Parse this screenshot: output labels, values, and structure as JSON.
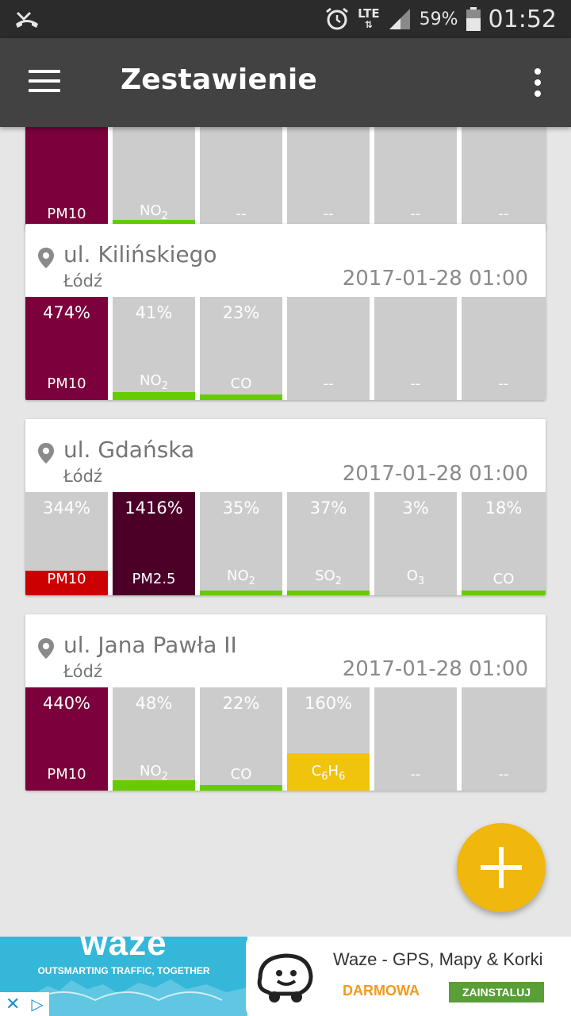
{
  "status_bar": {
    "network": "LTE",
    "battery": "59%",
    "time": "01:52",
    "icons": [
      "missed-call-icon",
      "alarm-icon",
      "signal-icon",
      "battery-icon"
    ]
  },
  "toolbar": {
    "title": "Zestawienie",
    "menu_icon": "hamburger-menu-icon",
    "overflow_icon": "more-vertical-icon"
  },
  "colors": {
    "primary_bar": "#424242",
    "purple": "#7b003b",
    "dark_purple": "#4d0027",
    "red": "#cc0000",
    "green": "#66cc00",
    "yellow": "#f0c40c",
    "tile_bg": "#cccccc",
    "fab": "#f0b70c"
  },
  "stations": [
    {
      "partial": true,
      "tiles": [
        {
          "pct": "",
          "label": "PM10",
          "sub": "",
          "color": "#7b003b",
          "fill": 1.0
        },
        {
          "pct": "",
          "label": "NO",
          "sub": "2",
          "color": "#66cc00",
          "fill": 0.1
        },
        {
          "pct": "",
          "label": "--",
          "sub": "",
          "color": "",
          "fill": 0
        },
        {
          "pct": "",
          "label": "--",
          "sub": "",
          "color": "",
          "fill": 0
        },
        {
          "pct": "",
          "label": "--",
          "sub": "",
          "color": "",
          "fill": 0
        },
        {
          "pct": "",
          "label": "--",
          "sub": "",
          "color": "",
          "fill": 0
        }
      ]
    },
    {
      "name": "ul. Kilińskiego",
      "city": "Łódź",
      "date": "2017-01-28 01:00",
      "tiles": [
        {
          "pct": "474%",
          "label": "PM10",
          "sub": "",
          "color": "#7b003b",
          "fill": 1.0
        },
        {
          "pct": "41%",
          "label": "NO",
          "sub": "2",
          "color": "#66cc00",
          "fill": 0.08
        },
        {
          "pct": "23%",
          "label": "CO",
          "sub": "",
          "color": "#66cc00",
          "fill": 0.05
        },
        {
          "pct": "",
          "label": "--",
          "sub": "",
          "color": "",
          "fill": 0
        },
        {
          "pct": "",
          "label": "--",
          "sub": "",
          "color": "",
          "fill": 0
        },
        {
          "pct": "",
          "label": "--",
          "sub": "",
          "color": "",
          "fill": 0
        }
      ]
    },
    {
      "name": "ul. Gdańska",
      "city": "Łódź",
      "date": "2017-01-28 01:00",
      "tiles": [
        {
          "pct": "344%",
          "label": "PM10",
          "sub": "",
          "color": "#cc0000",
          "fill": 0.24
        },
        {
          "pct": "1416%",
          "label": "PM2.5",
          "sub": "",
          "color": "#4d0027",
          "fill": 1.0
        },
        {
          "pct": "35%",
          "label": "NO",
          "sub": "2",
          "color": "#66cc00",
          "fill": 0.03
        },
        {
          "pct": "37%",
          "label": "SO",
          "sub": "2",
          "color": "#66cc00",
          "fill": 0.03
        },
        {
          "pct": "3%",
          "label": "O",
          "sub": "3",
          "color": "#66cc00",
          "fill": 0.0
        },
        {
          "pct": "18%",
          "label": "CO",
          "sub": "",
          "color": "#66cc00",
          "fill": 0.02
        }
      ]
    },
    {
      "name": "ul. Jana Pawła II",
      "city": "Łódź",
      "date": "2017-01-28 01:00",
      "tiles": [
        {
          "pct": "440%",
          "label": "PM10",
          "sub": "",
          "color": "#7b003b",
          "fill": 1.0
        },
        {
          "pct": "48%",
          "label": "NO",
          "sub": "2",
          "color": "#66cc00",
          "fill": 0.1
        },
        {
          "pct": "22%",
          "label": "CO",
          "sub": "",
          "color": "#66cc00",
          "fill": 0.05
        },
        {
          "pct": "160%",
          "label": "C6H6",
          "sub": "",
          "color": "#f0c40c",
          "fill": 0.36
        },
        {
          "pct": "",
          "label": "--",
          "sub": "",
          "color": "",
          "fill": 0
        },
        {
          "pct": "",
          "label": "--",
          "sub": "",
          "color": "",
          "fill": 0
        }
      ]
    }
  ],
  "fab": {
    "icon": "plus-icon"
  },
  "ad": {
    "brand": "waze",
    "tagline": "OUTSMARTING TRAFFIC, TOGETHER",
    "app_title": "Waze - GPS, Mapy & Korki",
    "price": "DARMOWA",
    "install": "ZAINSTALUJ"
  }
}
